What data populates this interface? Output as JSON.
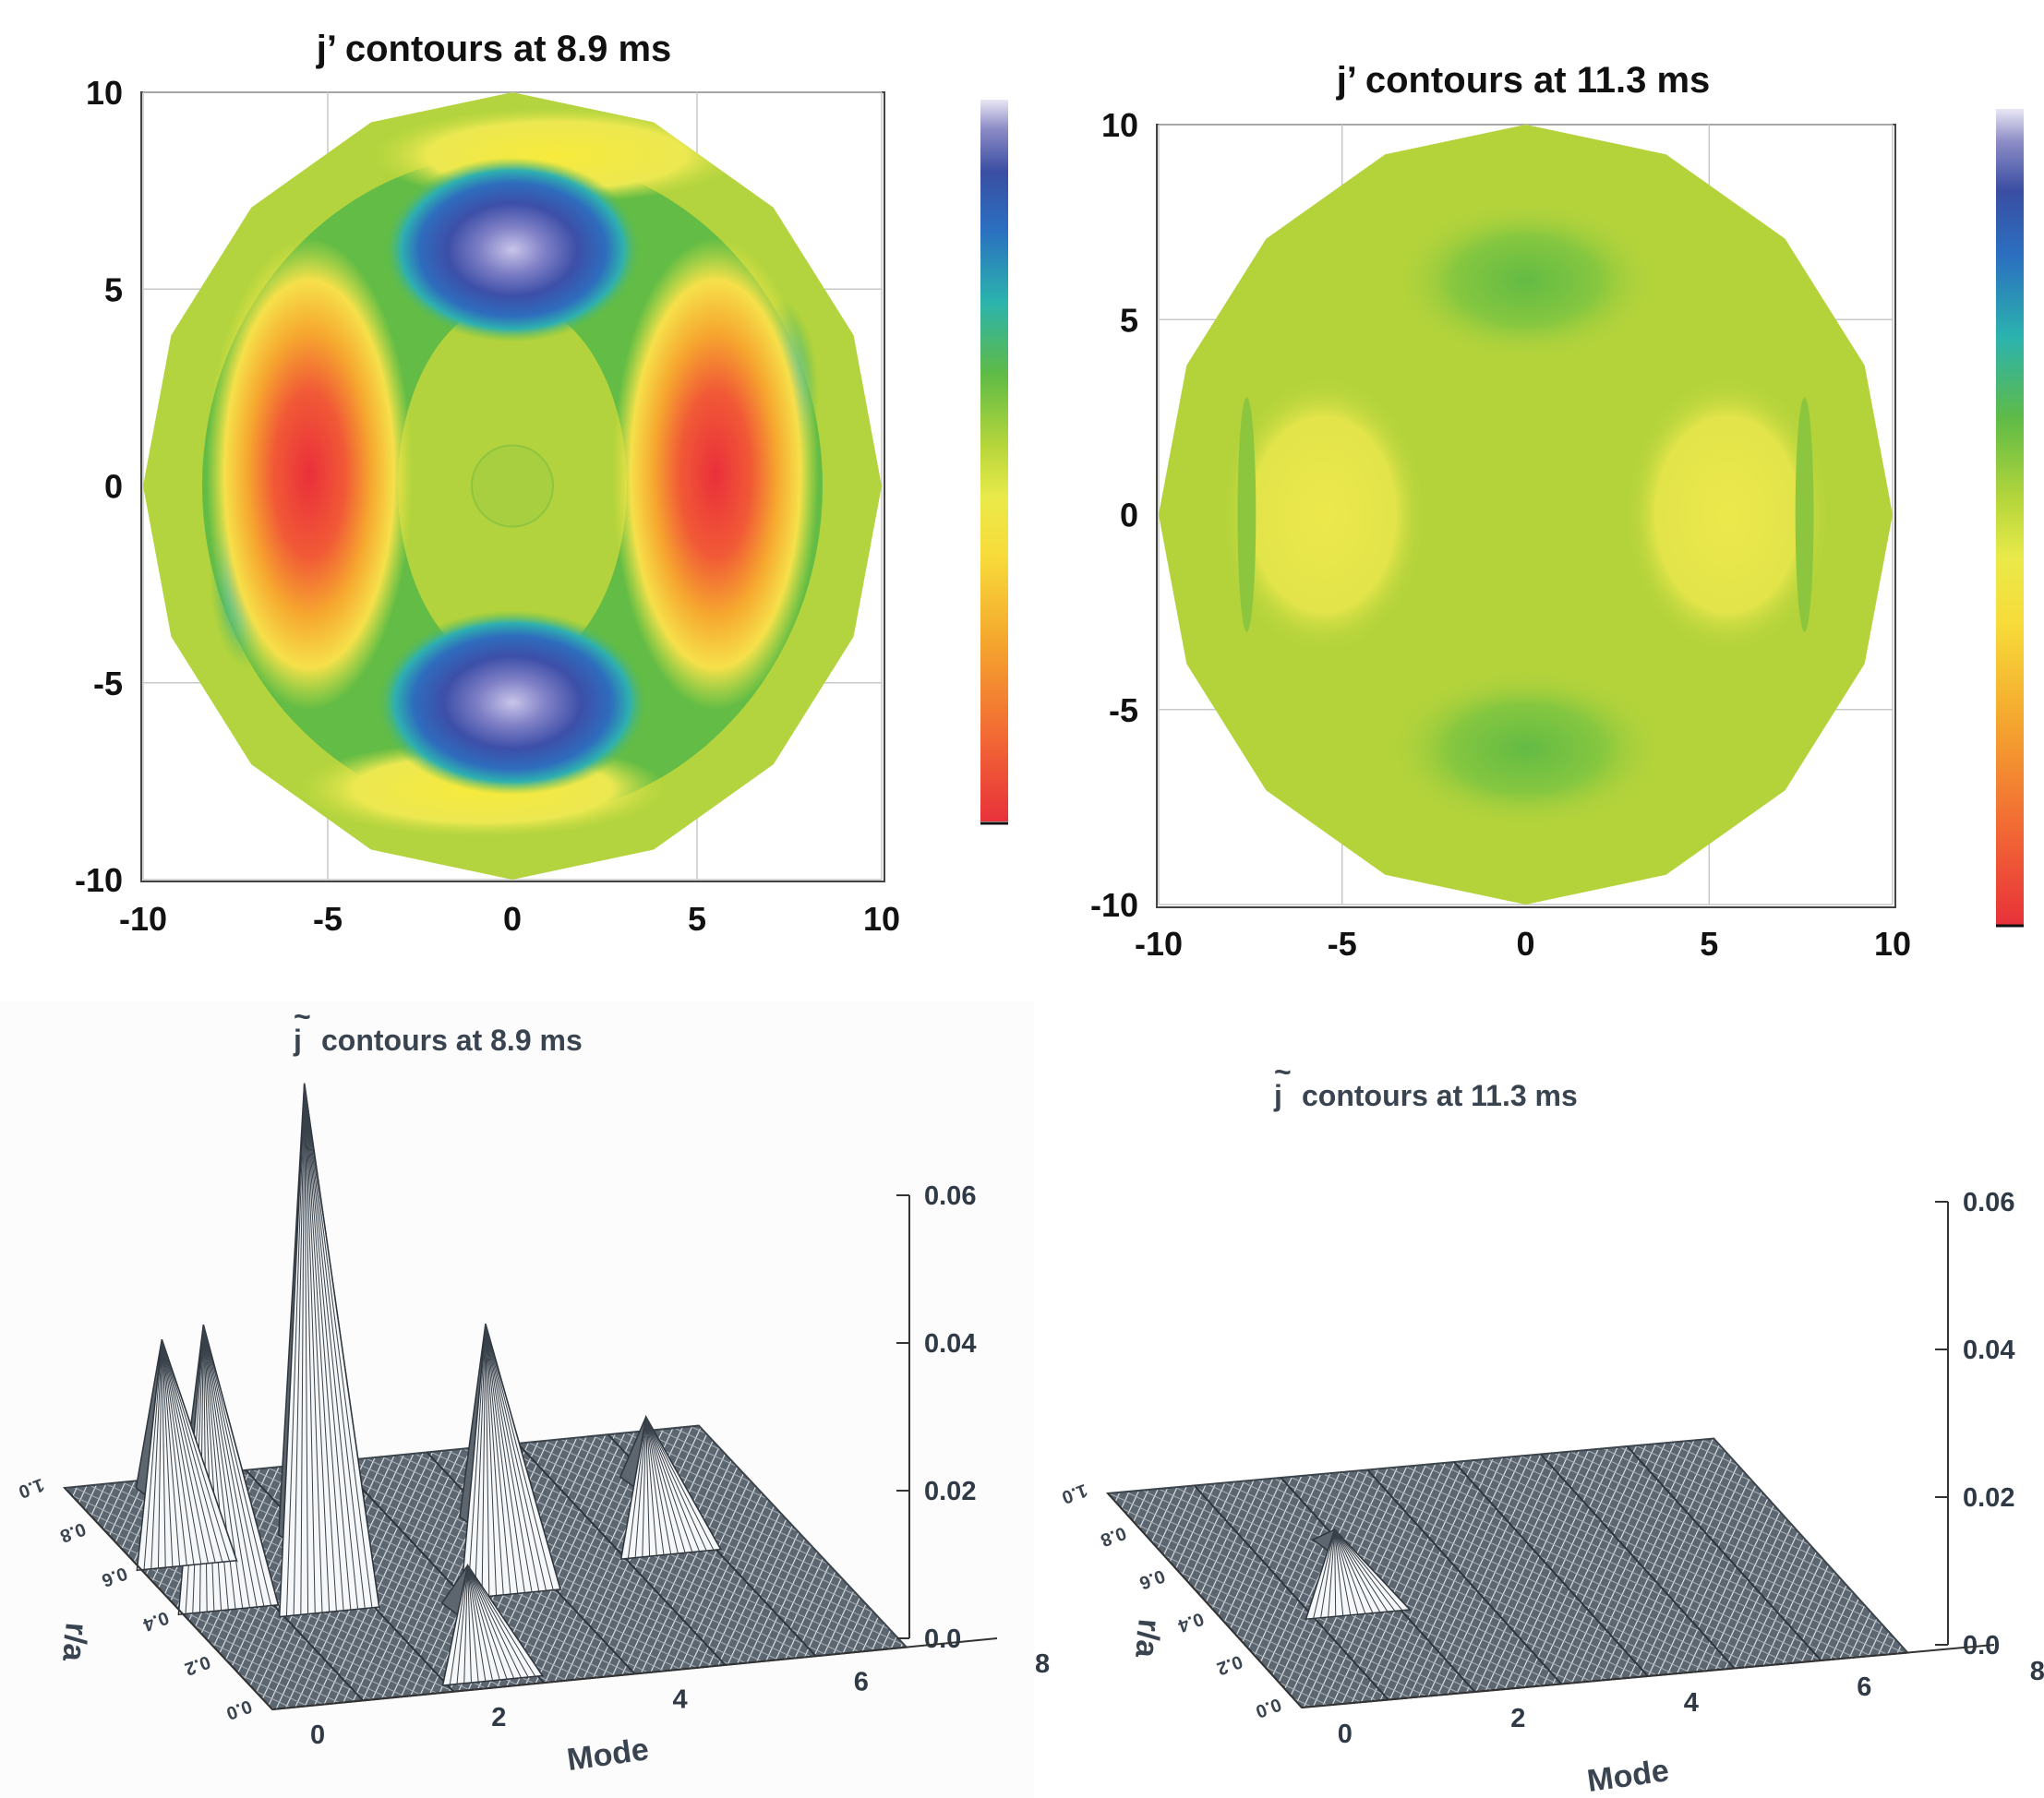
{
  "chart_data": [
    {
      "type": "contour",
      "title": "j’ contours at 8.9 ms",
      "xlim": [
        -10,
        10
      ],
      "ylim": [
        -10,
        10
      ],
      "xticks": [
        "-10",
        "-5",
        "0",
        "5",
        "10"
      ],
      "yticks": [
        "10",
        "5",
        "0",
        "-5",
        "-10"
      ],
      "colorbar": "rainbow (red low → yellow → green → cyan → blue → lavender high), no tick labels",
      "features": [
        {
          "kind": "max",
          "x": 0,
          "y": 6.0,
          "color": "blue"
        },
        {
          "kind": "max",
          "x": 0,
          "y": -5.5,
          "color": "blue"
        },
        {
          "kind": "min",
          "x": -5.5,
          "y": 0.3,
          "color": "red"
        },
        {
          "kind": "min",
          "x": 5.5,
          "y": 0.3,
          "color": "red"
        }
      ]
    },
    {
      "type": "contour",
      "title": "j’ contours at 11.3 ms",
      "xlim": [
        -10,
        10
      ],
      "ylim": [
        -10,
        10
      ],
      "xticks": [
        "-10",
        "-5",
        "0",
        "5",
        "10"
      ],
      "yticks": [
        "10",
        "5",
        "0",
        "-5",
        "-10"
      ],
      "colorbar": "rainbow, no tick labels",
      "features": [
        {
          "kind": "weak max",
          "x": 0,
          "y": 6.0,
          "color": "green"
        },
        {
          "kind": "weak max",
          "x": 0,
          "y": -6.0,
          "color": "green"
        },
        {
          "kind": "weak min",
          "x": -5.5,
          "y": 0,
          "color": "yellow"
        },
        {
          "kind": "weak min",
          "x": 5.5,
          "y": 0,
          "color": "yellow"
        }
      ]
    },
    {
      "type": "surface",
      "title_prefix": "~",
      "title_j": "j",
      "title": "contours at 8.9 ms",
      "xlabel": "Mode",
      "ylabel": "r/a",
      "xticks": [
        "0",
        "2",
        "4",
        "6",
        "8"
      ],
      "rticks": [
        "0.0",
        "0.2",
        "0.4",
        "0.6",
        "0.8",
        "1.0"
      ],
      "zticks": [
        "0.06",
        "0.04",
        "0.02",
        "0.0"
      ],
      "zlim": [
        0,
        0.06
      ],
      "peaks": [
        {
          "mode": 1,
          "r": 0.5,
          "value": 0.068
        },
        {
          "mode": 0,
          "r": 0.55,
          "value": 0.035
        },
        {
          "mode": 0,
          "r": 0.75,
          "value": 0.027
        },
        {
          "mode": 3,
          "r": 0.5,
          "value": 0.033
        },
        {
          "mode": 5,
          "r": 0.6,
          "value": 0.015
        },
        {
          "mode": 2,
          "r": 0.15,
          "value": 0.012
        }
      ]
    },
    {
      "type": "surface",
      "title_prefix": "~",
      "title_j": "j",
      "title": "contours at 11.3 ms",
      "xlabel": "Mode",
      "ylabel": "r/a",
      "xticks": [
        "0",
        "2",
        "4",
        "6",
        "8"
      ],
      "rticks": [
        "0.0",
        "0.2",
        "0.4",
        "0.6",
        "0.8",
        "1.0"
      ],
      "zticks": [
        "0.06",
        "0.04",
        "0.02",
        "0.0"
      ],
      "zlim": [
        0,
        0.06
      ],
      "peaks": [
        {
          "mode": 1,
          "r": 0.5,
          "value": 0.008
        }
      ]
    }
  ]
}
